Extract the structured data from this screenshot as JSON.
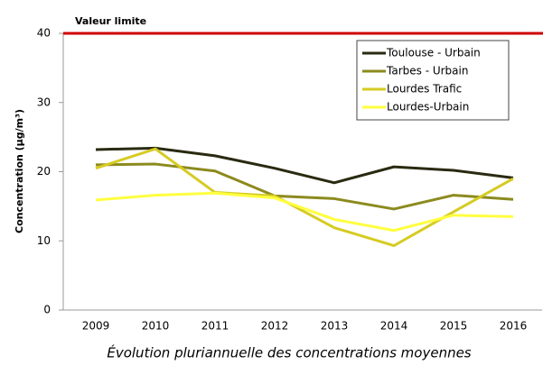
{
  "chart_data": {
    "type": "line",
    "caption": "Évolution pluriannuelle des concentrations moyennes",
    "y_label": "Concentration (µg/m³)",
    "categories": [
      "2009",
      "2010",
      "2011",
      "2012",
      "2013",
      "2014",
      "2015",
      "2016"
    ],
    "series": [
      {
        "name": "Toulouse - Urbain",
        "color": "#2a2a12",
        "values": [
          23.2,
          23.4,
          22.3,
          20.5,
          18.4,
          20.7,
          20.2,
          19.1
        ]
      },
      {
        "name": "Tarbes - Urbain",
        "color": "#8c8a1e",
        "values": [
          21.0,
          21.1,
          20.1,
          16.5,
          16.1,
          14.6,
          16.6,
          16.0
        ]
      },
      {
        "name": "Lourdes Trafic",
        "color": "#d6cb22",
        "values": [
          20.5,
          23.3,
          17.0,
          16.5,
          11.9,
          9.3,
          14.2,
          19.0
        ]
      },
      {
        "name": "Lourdes-Urbain",
        "color": "#ffff40",
        "values": [
          15.9,
          16.6,
          16.9,
          16.2,
          13.1,
          11.5,
          13.7,
          13.5
        ]
      }
    ],
    "limit": {
      "label": "Valeur limite",
      "value": 40,
      "color": "#d00000"
    },
    "ylim": [
      0,
      40
    ],
    "yticks": [
      0,
      10,
      20,
      30,
      40
    ],
    "grid": false,
    "legend": "top-right"
  }
}
